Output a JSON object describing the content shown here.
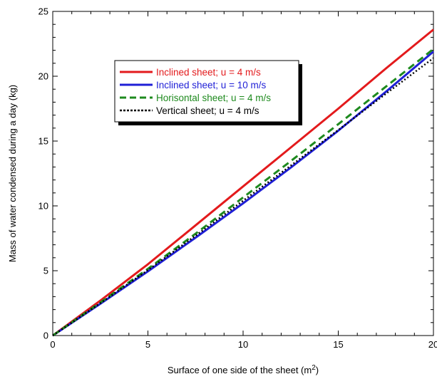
{
  "chart_data": {
    "type": "line",
    "title": "",
    "xlabel": "Surface of one side of the sheet (m",
    "xlabel_superscript": "2",
    "xlabel_suffix": ")",
    "ylabel": "Mass of water condensed during a day (kg)",
    "xlim": [
      0,
      20
    ],
    "ylim": [
      0,
      25
    ],
    "xticks": [
      0,
      5,
      10,
      15,
      20
    ],
    "xtick_labels": [
      "0",
      "5",
      "10",
      "15",
      "20"
    ],
    "yticks": [
      0,
      5,
      10,
      15,
      20,
      25
    ],
    "ytick_labels": [
      "0",
      "5",
      "10",
      "15",
      "20",
      "25"
    ],
    "grid": false,
    "legend_position": "upper-left (boxed, with shadow)",
    "series": [
      {
        "name": "Inclined sheet; u = 4 m/s",
        "color": "#e31a1c",
        "style": "solid",
        "x": [
          0,
          2.5,
          5,
          7.5,
          10,
          12.5,
          15,
          17.5,
          20
        ],
        "y": [
          0,
          2.7,
          5.5,
          8.5,
          11.5,
          14.5,
          17.5,
          20.6,
          23.6
        ]
      },
      {
        "name": "Inclined sheet; u = 10 m/s",
        "color": "#1f1fd6",
        "style": "solid",
        "x": [
          0,
          2.5,
          5,
          7.5,
          10,
          12.5,
          15,
          17.5,
          20
        ],
        "y": [
          0,
          2.45,
          4.95,
          7.55,
          10.2,
          12.95,
          15.8,
          18.8,
          21.9
        ]
      },
      {
        "name": "Horisontal sheet; u = 4 m/s",
        "color": "#1e8a1e",
        "style": "dashed",
        "x": [
          0,
          2.5,
          5,
          7.5,
          10,
          12.5,
          15,
          17.5,
          20
        ],
        "y": [
          0,
          2.55,
          5.15,
          7.85,
          10.65,
          13.45,
          16.3,
          19.2,
          22.1
        ]
      },
      {
        "name": "Vertical sheet; u = 4 m/s",
        "color": "#000000",
        "style": "dotted",
        "x": [
          0,
          2.5,
          5,
          7.5,
          10,
          12.5,
          15,
          17.5,
          20
        ],
        "y": [
          0,
          2.5,
          5.05,
          7.7,
          10.4,
          13.1,
          15.85,
          18.65,
          21.4
        ]
      }
    ]
  }
}
